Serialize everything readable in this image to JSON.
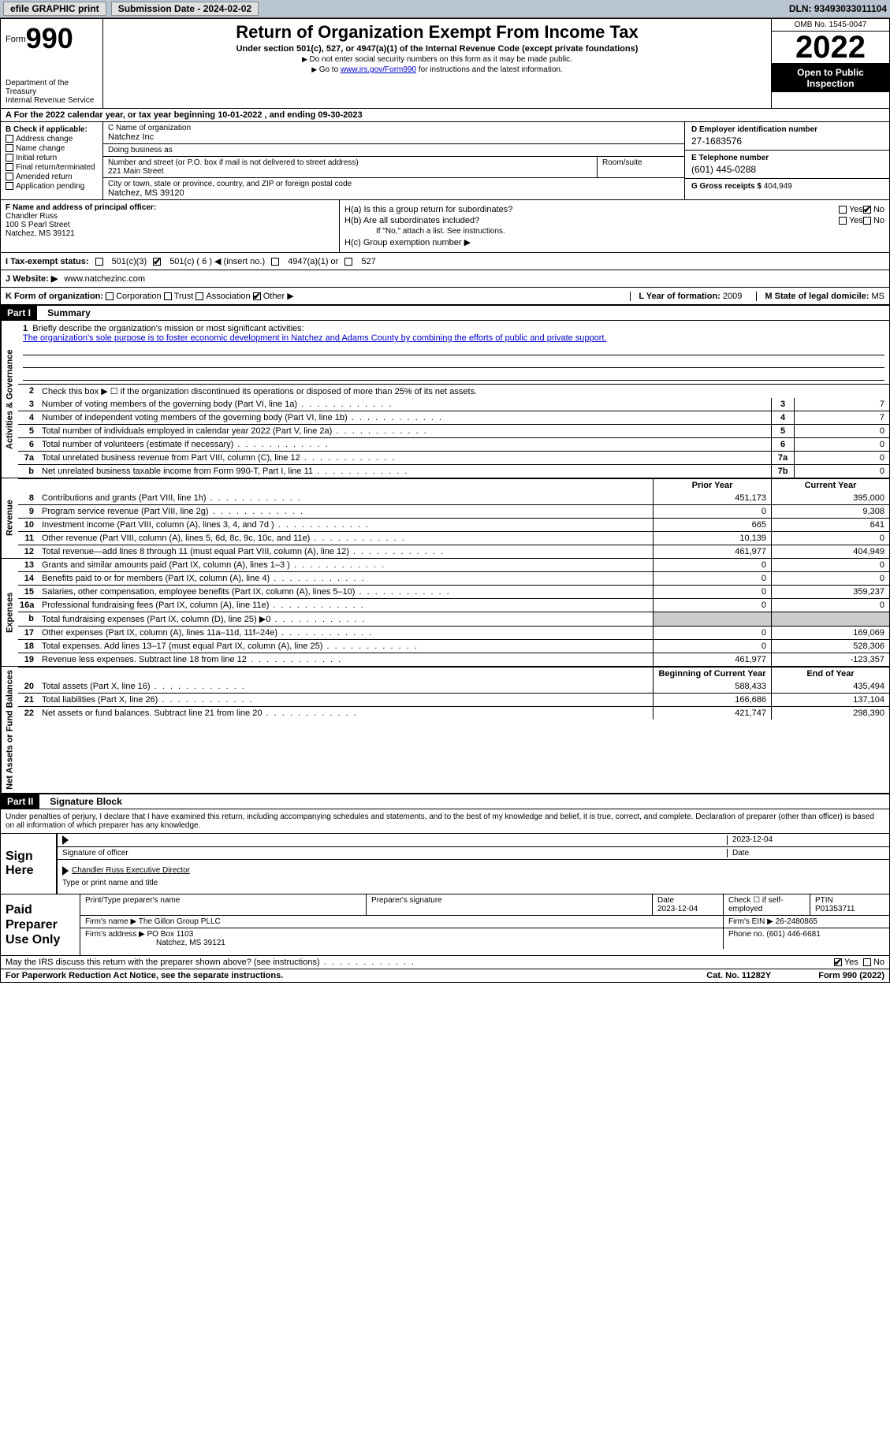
{
  "topbar": {
    "efile_label": "efile GRAPHIC print",
    "submission_label": "Submission Date - 2024-02-02",
    "dln_label": "DLN: 93493033011104"
  },
  "header": {
    "form_prefix": "Form",
    "form_no": "990",
    "dept": "Department of the Treasury",
    "irs": "Internal Revenue Service",
    "title": "Return of Organization Exempt From Income Tax",
    "subtitle": "Under section 501(c), 527, or 4947(a)(1) of the Internal Revenue Code (except private foundations)",
    "note1": "Do not enter social security numbers on this form as it may be made public.",
    "note2_pre": "Go to ",
    "note2_link": "www.irs.gov/Form990",
    "note2_post": " for instructions and the latest information.",
    "omb": "OMB No. 1545-0047",
    "year": "2022",
    "open": "Open to Public Inspection"
  },
  "rowA": "A For the 2022 calendar year, or tax year beginning 10-01-2022    , and ending 09-30-2023",
  "b": {
    "header": "B Check if applicable:",
    "opts": [
      "Address change",
      "Name change",
      "Initial return",
      "Final return/terminated",
      "Amended return",
      "Application pending"
    ]
  },
  "c": {
    "name_lbl": "C Name of organization",
    "name": "Natchez Inc",
    "dba_lbl": "Doing business as",
    "dba": "",
    "street_lbl": "Number and street (or P.O. box if mail is not delivered to street address)",
    "street": "221 Main Street",
    "suite_lbl": "Room/suite",
    "suite": "",
    "city_lbl": "City or town, state or province, country, and ZIP or foreign postal code",
    "city": "Natchez, MS  39120"
  },
  "d": {
    "lbl": "D Employer identification number",
    "val": "27-1683576"
  },
  "e": {
    "lbl": "E Telephone number",
    "val": "(601) 445-0288"
  },
  "g": {
    "lbl": "G Gross receipts $",
    "val": "404,949"
  },
  "f": {
    "lbl": "F Name and address of principal officer:",
    "name": "Chandler Russ",
    "addr1": "100 S Pearl Street",
    "addr2": "Natchez, MS  39121"
  },
  "h": {
    "a": "H(a)  Is this a group return for subordinates?",
    "b": "H(b)  Are all subordinates included?",
    "b_note": "If \"No,\" attach a list. See instructions.",
    "c": "H(c)  Group exemption number ▶",
    "yes": "Yes",
    "no": "No"
  },
  "i": {
    "lbl": "I  Tax-exempt status:",
    "o1": "501(c)(3)",
    "o2": "501(c) ( 6 ) ◀ (insert no.)",
    "o3": "4947(a)(1) or",
    "o4": "527"
  },
  "j": {
    "lbl": "J  Website: ▶",
    "val": "www.natchezinc.com"
  },
  "k": {
    "lbl": "K Form of organization:",
    "opts": [
      "Corporation",
      "Trust",
      "Association",
      "Other ▶"
    ]
  },
  "l": {
    "lbl": "L Year of formation:",
    "val": "2009"
  },
  "m": {
    "lbl": "M State of legal domicile:",
    "val": "MS"
  },
  "part1": {
    "head": "Part I",
    "title": "Summary"
  },
  "mission": {
    "lbl": "Briefly describe the organization's mission or most significant activities:",
    "text": "The organization's sole purpose is to foster economic development in Natchez and Adams County by combining the efforts of public and private support."
  },
  "line2": "Check this box ▶ ☐ if the organization discontinued its operations or disposed of more than 25% of its net assets.",
  "vtabs": {
    "ag": "Activities & Governance",
    "rev": "Revenue",
    "exp": "Expenses",
    "na": "Net Assets or Fund Balances"
  },
  "ag_lines": [
    {
      "n": "3",
      "d": "Number of voting members of the governing body (Part VI, line 1a)",
      "box": "3",
      "v": "7"
    },
    {
      "n": "4",
      "d": "Number of independent voting members of the governing body (Part VI, line 1b)",
      "box": "4",
      "v": "7"
    },
    {
      "n": "5",
      "d": "Total number of individuals employed in calendar year 2022 (Part V, line 2a)",
      "box": "5",
      "v": "0"
    },
    {
      "n": "6",
      "d": "Total number of volunteers (estimate if necessary)",
      "box": "6",
      "v": "0"
    },
    {
      "n": "7a",
      "d": "Total unrelated business revenue from Part VIII, column (C), line 12",
      "box": "7a",
      "v": "0"
    },
    {
      "n": "b",
      "d": "Net unrelated business taxable income from Form 990-T, Part I, line 11",
      "box": "7b",
      "v": "0"
    }
  ],
  "colhead": {
    "prior": "Prior Year",
    "current": "Current Year",
    "begin": "Beginning of Current Year",
    "end": "End of Year"
  },
  "rev_lines": [
    {
      "n": "8",
      "d": "Contributions and grants (Part VIII, line 1h)",
      "p": "451,173",
      "c": "395,000"
    },
    {
      "n": "9",
      "d": "Program service revenue (Part VIII, line 2g)",
      "p": "0",
      "c": "9,308"
    },
    {
      "n": "10",
      "d": "Investment income (Part VIII, column (A), lines 3, 4, and 7d )",
      "p": "665",
      "c": "641"
    },
    {
      "n": "11",
      "d": "Other revenue (Part VIII, column (A), lines 5, 6d, 8c, 9c, 10c, and 11e)",
      "p": "10,139",
      "c": "0"
    },
    {
      "n": "12",
      "d": "Total revenue—add lines 8 through 11 (must equal Part VIII, column (A), line 12)",
      "p": "461,977",
      "c": "404,949"
    }
  ],
  "exp_lines": [
    {
      "n": "13",
      "d": "Grants and similar amounts paid (Part IX, column (A), lines 1–3 )",
      "p": "0",
      "c": "0"
    },
    {
      "n": "14",
      "d": "Benefits paid to or for members (Part IX, column (A), line 4)",
      "p": "0",
      "c": "0"
    },
    {
      "n": "15",
      "d": "Salaries, other compensation, employee benefits (Part IX, column (A), lines 5–10)",
      "p": "0",
      "c": "359,237"
    },
    {
      "n": "16a",
      "d": "Professional fundraising fees (Part IX, column (A), line 11e)",
      "p": "0",
      "c": "0"
    },
    {
      "n": "b",
      "d": "Total fundraising expenses (Part IX, column (D), line 25) ▶0",
      "p": "",
      "c": "",
      "grey": true
    },
    {
      "n": "17",
      "d": "Other expenses (Part IX, column (A), lines 11a–11d, 11f–24e)",
      "p": "0",
      "c": "169,069"
    },
    {
      "n": "18",
      "d": "Total expenses. Add lines 13–17 (must equal Part IX, column (A), line 25)",
      "p": "0",
      "c": "528,306"
    },
    {
      "n": "19",
      "d": "Revenue less expenses. Subtract line 18 from line 12",
      "p": "461,977",
      "c": "-123,357"
    }
  ],
  "na_lines": [
    {
      "n": "20",
      "d": "Total assets (Part X, line 16)",
      "p": "588,433",
      "c": "435,494"
    },
    {
      "n": "21",
      "d": "Total liabilities (Part X, line 26)",
      "p": "166,686",
      "c": "137,104"
    },
    {
      "n": "22",
      "d": "Net assets or fund balances. Subtract line 21 from line 20",
      "p": "421,747",
      "c": "298,390"
    }
  ],
  "part2": {
    "head": "Part II",
    "title": "Signature Block"
  },
  "penalties": "Under penalties of perjury, I declare that I have examined this return, including accompanying schedules and statements, and to the best of my knowledge and belief, it is true, correct, and complete. Declaration of preparer (other than officer) is based on all information of which preparer has any knowledge.",
  "sign": {
    "here": "Sign Here",
    "sig_lbl": "Signature of officer",
    "date": "2023-12-04",
    "date_lbl": "Date",
    "name": "Chandler Russ  Executive Director",
    "name_lbl": "Type or print name and title"
  },
  "prep": {
    "lbl": "Paid Preparer Use Only",
    "h1": "Print/Type preparer's name",
    "h2": "Preparer's signature",
    "h3_lbl": "Date",
    "h3": "2023-12-04",
    "h4": "Check ☐ if self-employed",
    "h5_lbl": "PTIN",
    "h5": "P01353711",
    "firm_lbl": "Firm's name    ▶",
    "firm": "The Gillon Group PLLC",
    "ein_lbl": "Firm's EIN ▶",
    "ein": "26-2480865",
    "addr_lbl": "Firm's address ▶",
    "addr1": "PO Box 1103",
    "addr2": "Natchez, MS  39121",
    "phone_lbl": "Phone no.",
    "phone": "(601) 446-6681"
  },
  "discuss": {
    "q": "May the IRS discuss this return with the preparer shown above? (see instructions)",
    "yes": "Yes",
    "no": "No"
  },
  "footer": {
    "pra": "For Paperwork Reduction Act Notice, see the separate instructions.",
    "cat": "Cat. No. 11282Y",
    "form": "Form 990 (2022)"
  }
}
